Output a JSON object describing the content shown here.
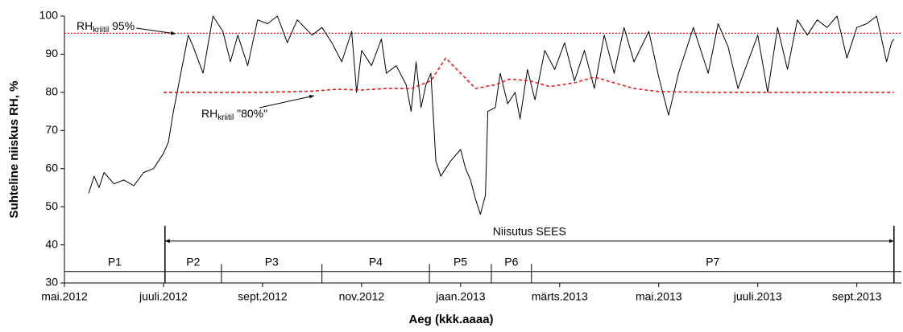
{
  "chart_data": {
    "type": "line",
    "y_label": "Suhteline niiskus RH, %",
    "x_label": "Aeg (kkk.aaaa)",
    "xlim": [
      0,
      16.9
    ],
    "xticks": [
      {
        "value": 0,
        "label": "mai.2012"
      },
      {
        "value": 2,
        "label": "juuli.2012"
      },
      {
        "value": 4,
        "label": "sept.2012"
      },
      {
        "value": 6,
        "label": "nov.2012"
      },
      {
        "value": 8,
        "label": "jaan.2013"
      },
      {
        "value": 10,
        "label": "märts.2013"
      },
      {
        "value": 12,
        "label": "mai.2013"
      },
      {
        "value": 14,
        "label": "juuli.2013"
      },
      {
        "value": 16,
        "label": "sept.2013"
      }
    ],
    "ylim": [
      30,
      100
    ],
    "yticks": [
      30,
      40,
      50,
      60,
      70,
      80,
      90,
      100
    ],
    "series": [
      {
        "color": "#000000",
        "style": "solid",
        "x": [
          0.49,
          0.6,
          0.7,
          0.8,
          1.0,
          1.2,
          1.4,
          1.6,
          1.8,
          2.0,
          2.1,
          2.2,
          2.35,
          2.5,
          2.6,
          2.8,
          3.0,
          3.2,
          3.35,
          3.5,
          3.7,
          3.9,
          4.1,
          4.3,
          4.5,
          4.7,
          5.0,
          5.2,
          5.4,
          5.6,
          5.8,
          5.9,
          6.0,
          6.2,
          6.4,
          6.5,
          6.7,
          6.9,
          7.0,
          7.1,
          7.2,
          7.3,
          7.4,
          7.5,
          7.6,
          7.8,
          8.0,
          8.1,
          8.2,
          8.3,
          8.4,
          8.5,
          8.55,
          8.7,
          8.8,
          8.95,
          9.1,
          9.2,
          9.35,
          9.5,
          9.7,
          9.9,
          10.1,
          10.3,
          10.5,
          10.7,
          10.9,
          11.1,
          11.3,
          11.5,
          11.8,
          12.0,
          12.2,
          12.4,
          12.7,
          13.0,
          13.2,
          13.4,
          13.6,
          13.8,
          14.0,
          14.2,
          14.4,
          14.6,
          14.8,
          15.0,
          15.2,
          15.4,
          15.6,
          15.8,
          16.0,
          16.2,
          16.4,
          16.6,
          16.7,
          16.75
        ],
        "values": [
          53.5,
          58,
          55,
          59,
          56,
          57,
          55.5,
          59,
          60,
          64,
          67,
          75,
          85,
          95,
          92,
          85,
          100,
          96,
          88,
          95,
          87,
          99,
          98,
          100,
          93,
          99,
          95,
          97,
          93,
          88,
          96,
          80,
          91,
          87,
          94,
          85,
          87,
          82,
          75,
          88,
          76,
          82,
          85,
          62,
          58,
          62,
          65,
          60,
          57,
          52,
          48,
          53,
          75,
          76,
          85,
          77,
          80,
          73,
          86,
          78,
          91,
          86,
          93,
          83,
          91,
          81,
          95,
          85,
          97,
          88,
          96,
          84,
          74,
          85,
          97,
          85,
          98,
          92,
          81,
          88,
          95,
          80,
          97,
          86,
          99,
          95,
          99,
          97,
          100,
          89,
          97,
          98,
          100,
          88,
          93,
          94
        ]
      },
      {
        "color": "#e41a1c",
        "style": "dashed",
        "x": [
          2.0,
          4.0,
          5.0,
          5.5,
          6.0,
          6.5,
          7.0,
          7.4,
          7.7,
          8.0,
          8.3,
          8.7,
          9.0,
          9.4,
          9.8,
          10.3,
          10.7,
          11.1,
          11.5,
          12.0,
          13.0,
          14.0,
          15.0,
          16.0,
          16.75
        ],
        "values": [
          80,
          80,
          80.3,
          80.8,
          80.6,
          81,
          81,
          83,
          89,
          85,
          81,
          82,
          83.5,
          83,
          81.5,
          82.5,
          84,
          82.5,
          81,
          80.2,
          80,
          80,
          80,
          80,
          80
        ]
      }
    ],
    "reference_line": {
      "value": 95.5,
      "color": "#e41a1c",
      "style": "dotted"
    },
    "annotations": [
      {
        "text": "RH",
        "sub": "kriitil",
        "suffix": " 95%"
      },
      {
        "text": "RH",
        "sub": "kriitil",
        "suffix": " \"80%\""
      }
    ],
    "periods": {
      "labels": [
        "P1",
        "P2",
        "P3",
        "P4",
        "P5",
        "P6",
        "P7"
      ],
      "bounds": [
        0,
        2.03,
        3.17,
        5.2,
        7.37,
        8.62,
        9.43,
        16.75
      ],
      "line_y": 33,
      "tall_top": 45
    },
    "irrigation": {
      "label": "Niisutus SEES",
      "start": 2.03,
      "end": 16.75,
      "y": 41
    }
  }
}
